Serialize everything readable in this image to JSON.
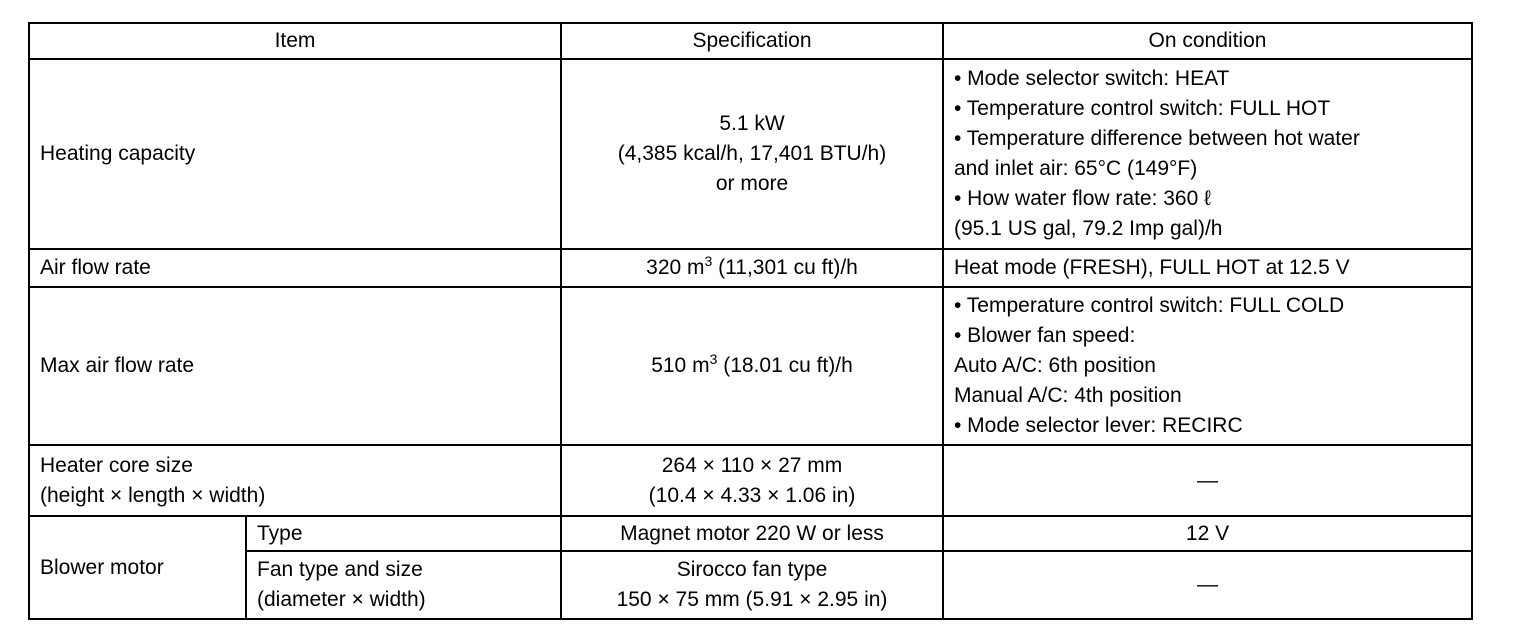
{
  "headers": [
    "Item",
    "Specification",
    "On condition"
  ],
  "rows": {
    "heating": {
      "item": "Heating capacity",
      "spec": [
        "5.1 kW",
        "(4,385 kcal/h, 17,401 BTU/h)",
        "or more"
      ],
      "cond": [
        "•  Mode selector switch: HEAT",
        "•  Temperature control switch: FULL HOT",
        "•  Temperature difference between hot water",
        "and inlet air: 65°C (149°F)",
        "•  How water flow rate: 360  ℓ",
        "(95.1 US gal, 79.2 Imp gal)/h"
      ]
    },
    "airflow": {
      "item": "Air flow rate",
      "spec_pre": "320 m",
      "spec_sup": "3",
      "spec_post": " (11,301 cu ft)/h",
      "cond": "Heat mode (FRESH), FULL HOT at 12.5 V"
    },
    "maxairflow": {
      "item": "Max air flow rate",
      "spec_pre": "510 m",
      "spec_sup": "3",
      "spec_post": " (18.01 cu ft)/h",
      "cond": [
        "•  Temperature control switch: FULL COLD",
        "•  Blower fan speed:",
        "Auto A/C: 6th position",
        "Manual A/C: 4th position",
        "•  Mode selector lever: RECIRC"
      ]
    },
    "heatercore": {
      "item": [
        "Heater core size",
        "(height × length × width)"
      ],
      "spec": [
        "264 × 110 × 27 mm",
        "(10.4 × 4.33 × 1.06 in)"
      ],
      "cond": "—"
    },
    "blower": {
      "item": "Blower motor",
      "type": {
        "label": "Type",
        "spec": "Magnet motor 220 W or less",
        "cond": "12 V"
      },
      "fan": {
        "label": [
          "Fan type and size",
          "(diameter × width)"
        ],
        "spec": [
          "Sirocco fan type",
          "150 × 75 mm (5.91 × 2.95 in)"
        ],
        "cond": "—"
      }
    }
  }
}
